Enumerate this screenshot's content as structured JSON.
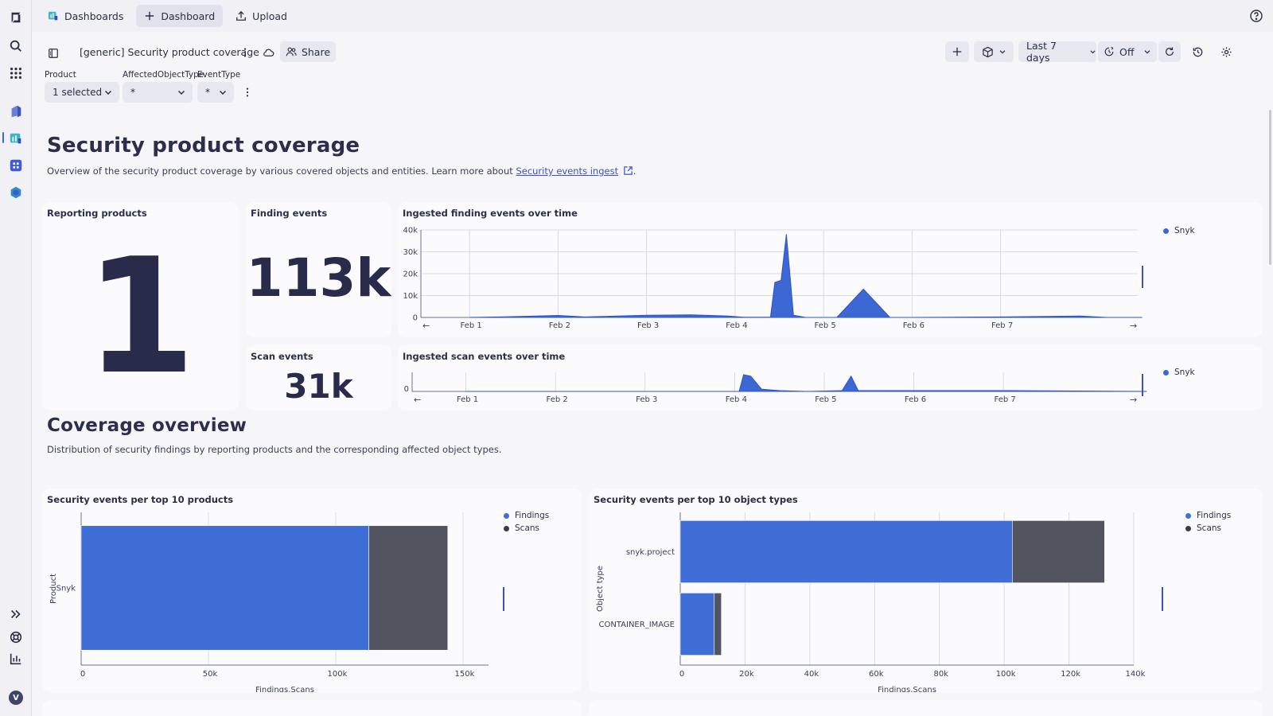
{
  "topbar": {
    "tabs": [
      {
        "label": "Dashboards",
        "icon": "dashboards-app-icon"
      },
      {
        "label": "Dashboard",
        "icon": "plus-icon"
      },
      {
        "label": "Upload",
        "icon": "upload-icon"
      }
    ]
  },
  "toolbar": {
    "dashboard_title": "[generic] Security product coverage",
    "share_label": "Share",
    "timeframe_label": "Last 7 days",
    "refresh_label": "Off"
  },
  "filters": [
    {
      "label": "Product",
      "value": "1 selected"
    },
    {
      "label": "AffectedObjectType",
      "value": "*"
    },
    {
      "label": "EventType",
      "value": "*"
    }
  ],
  "section1": {
    "heading": "Security product coverage",
    "description_prefix": "Overview of the security product coverage by various covered objects and entities. Learn more about ",
    "link_text": "Security events ingest",
    "description_suffix": "."
  },
  "tiles": {
    "reporting_products": {
      "title": "Reporting products",
      "value": "1"
    },
    "finding_events": {
      "title": "Finding events",
      "value": "113k"
    },
    "scan_events": {
      "title": "Scan events",
      "value": "31k"
    }
  },
  "section2": {
    "heading": "Coverage overview",
    "description": "Distribution of security findings by reporting products and the corresponding affected object types."
  },
  "colors": {
    "findings": "#3f6fd6",
    "scans": "#52555f",
    "area": "#3d67d3",
    "accent": "#4a63d9"
  },
  "chart_data": [
    {
      "type": "area",
      "title": "Ingested finding events over time",
      "x": [
        "Feb 1",
        "Feb 2",
        "Feb 3",
        "Feb 4",
        "Feb 5",
        "Feb 6",
        "Feb 7"
      ],
      "ylim": [
        0,
        40000
      ],
      "yticks": [
        "40k",
        "30k",
        "20k",
        "10k",
        "0"
      ],
      "series": [
        {
          "name": "Snyk",
          "points": [
            [
              0.0,
              0
            ],
            [
              0.4,
              300
            ],
            [
              1.0,
              900
            ],
            [
              1.3,
              200
            ],
            [
              2.0,
              1000
            ],
            [
              2.5,
              1200
            ],
            [
              2.9,
              700
            ],
            [
              3.1,
              100
            ],
            [
              3.4,
              100
            ],
            [
              3.45,
              16000
            ],
            [
              3.52,
              17000
            ],
            [
              3.58,
              38000
            ],
            [
              3.66,
              1000
            ],
            [
              3.8,
              0
            ],
            [
              4.0,
              0
            ],
            [
              4.15,
              0
            ],
            [
              4.45,
              13000
            ],
            [
              4.75,
              0
            ],
            [
              5.0,
              0
            ],
            [
              6.0,
              200
            ],
            [
              6.9,
              600
            ],
            [
              7.2,
              0
            ],
            [
              7.6,
              0
            ]
          ]
        }
      ],
      "legend_position": "top-right"
    },
    {
      "type": "area",
      "title": "Ingested scan events over time",
      "x": [
        "Feb 1",
        "Feb 2",
        "Feb 3",
        "Feb 4",
        "Feb 5",
        "Feb 6",
        "Feb 7"
      ],
      "yticks": [
        "0"
      ],
      "series": [
        {
          "name": "Snyk",
          "points": [
            [
              0.0,
              0
            ],
            [
              3.05,
              0
            ],
            [
              3.1,
              22
            ],
            [
              3.18,
              20
            ],
            [
              3.3,
              3
            ],
            [
              3.5,
              1
            ],
            [
              3.8,
              0
            ],
            [
              4.2,
              1
            ],
            [
              4.3,
              20
            ],
            [
              4.38,
              1
            ],
            [
              5.0,
              1
            ],
            [
              6.0,
              1
            ],
            [
              7.6,
              0
            ]
          ]
        }
      ],
      "legend_position": "top-right"
    },
    {
      "type": "bar",
      "orientation": "horizontal",
      "stacked": true,
      "title": "Security events per top 10 products",
      "categories": [
        "Snyk"
      ],
      "series": [
        {
          "name": "Findings",
          "values": [
            113000
          ]
        },
        {
          "name": "Scans",
          "values": [
            31000
          ]
        }
      ],
      "xlim": [
        0,
        160000
      ],
      "xticks": [
        0,
        50000,
        100000,
        150000
      ],
      "xtick_labels": [
        "0",
        "50k",
        "100k",
        "150k"
      ],
      "xlabel": "Findings,Scans",
      "ylabel": "Product",
      "legend_position": "top-right"
    },
    {
      "type": "bar",
      "orientation": "horizontal",
      "stacked": true,
      "title": "Security events per top 10 object types",
      "categories": [
        "snyk.project",
        "CONTAINER_IMAGE"
      ],
      "series": [
        {
          "name": "Findings",
          "values": [
            102500,
            10500
          ]
        },
        {
          "name": "Scans",
          "values": [
            28500,
            2200
          ]
        }
      ],
      "xlim": [
        0,
        140000
      ],
      "xticks": [
        0,
        20000,
        40000,
        60000,
        80000,
        100000,
        120000,
        140000
      ],
      "xtick_labels": [
        "0",
        "20k",
        "40k",
        "60k",
        "80k",
        "100k",
        "120k",
        "140k"
      ],
      "xlabel": "Findings,Scans",
      "ylabel": "Object type",
      "legend_position": "top-right"
    }
  ]
}
